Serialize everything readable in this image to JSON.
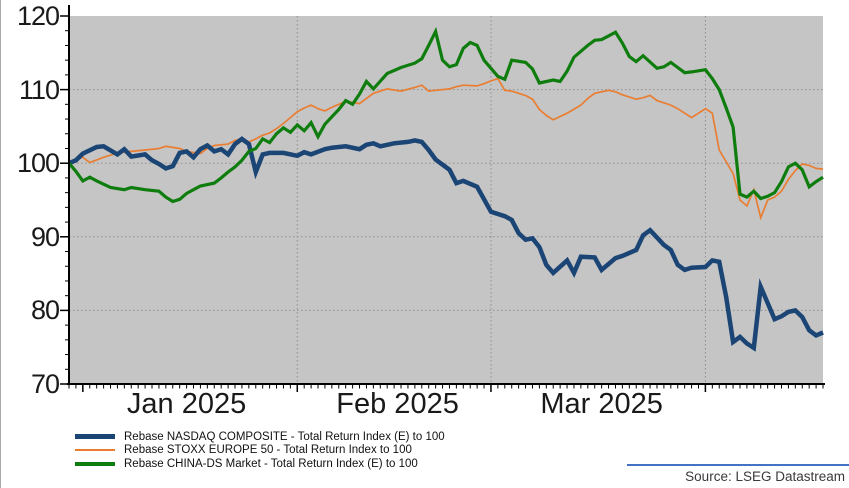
{
  "chart_data": {
    "type": "line",
    "title": "",
    "xlabel": "",
    "ylabel": "",
    "plot_bg": "#C5C5C5",
    "gridline_color": "#8F8F8F",
    "axis_color": "#000000",
    "x_range_days": 109,
    "x_month_gridline_days": [
      33,
      61,
      92
    ],
    "x_month_tick_days": [
      2,
      33,
      61,
      92
    ],
    "x_month_labels": [
      {
        "label": "Jan 2025",
        "day": 17
      },
      {
        "label": "Feb 2025",
        "day": 47.5
      },
      {
        "label": "Mar 2025",
        "day": 77
      }
    ],
    "y_axis": {
      "min": 70,
      "max": 120,
      "major_ticks": [
        120,
        110,
        100,
        90,
        80,
        70
      ],
      "minor_tick_step": 2,
      "gridline_values": [
        110,
        100,
        90,
        80
      ]
    },
    "legend_position": "bottom-left",
    "series": [
      {
        "name": "Rebase NASDAQ COMPOSITE - Total Return Index (E) to 100",
        "color": "#1B4575",
        "line_width": 4.5,
        "legend_swatch_height": 5,
        "points": [
          [
            0,
            100
          ],
          [
            1,
            100.4
          ],
          [
            2,
            101.3
          ],
          [
            4,
            102.2
          ],
          [
            5,
            102.3
          ],
          [
            7,
            101.2
          ],
          [
            8,
            101.9
          ],
          [
            9,
            100.9
          ],
          [
            11,
            101.2
          ],
          [
            12,
            100.4
          ],
          [
            13,
            99.9
          ],
          [
            14,
            99.3
          ],
          [
            15,
            99.6
          ],
          [
            16,
            101.4
          ],
          [
            17,
            101.6
          ],
          [
            18,
            100.8
          ],
          [
            19,
            101.9
          ],
          [
            20,
            102.4
          ],
          [
            21,
            101.6
          ],
          [
            22,
            101.9
          ],
          [
            23,
            101.2
          ],
          [
            24,
            102.6
          ],
          [
            25,
            103.3
          ],
          [
            26,
            102.6
          ],
          [
            27,
            98.8
          ],
          [
            28,
            101.2
          ],
          [
            29,
            101.4
          ],
          [
            31,
            101.4
          ],
          [
            33,
            101.0
          ],
          [
            34,
            101.5
          ],
          [
            35,
            101.2
          ],
          [
            37,
            101.9
          ],
          [
            38,
            102.1
          ],
          [
            40,
            102.3
          ],
          [
            42,
            101.9
          ],
          [
            43,
            102.5
          ],
          [
            44,
            102.7
          ],
          [
            45,
            102.3
          ],
          [
            47,
            102.7
          ],
          [
            49,
            102.9
          ],
          [
            50,
            103.1
          ],
          [
            51,
            102.9
          ],
          [
            52,
            101.8
          ],
          [
            53,
            100.5
          ],
          [
            55,
            99.1
          ],
          [
            56,
            97.3
          ],
          [
            57,
            97.6
          ],
          [
            59,
            96.8
          ],
          [
            61,
            93.4
          ],
          [
            63,
            92.8
          ],
          [
            64,
            92.3
          ],
          [
            65,
            90.5
          ],
          [
            66,
            89.6
          ],
          [
            67,
            89.8
          ],
          [
            68,
            88.6
          ],
          [
            69,
            86.2
          ],
          [
            70,
            85.1
          ],
          [
            72,
            86.8
          ],
          [
            73,
            85.1
          ],
          [
            74,
            87.3
          ],
          [
            76,
            87.2
          ],
          [
            77,
            85.5
          ],
          [
            79,
            87.1
          ],
          [
            80,
            87.4
          ],
          [
            82,
            88.2
          ],
          [
            83,
            90.2
          ],
          [
            84,
            90.9
          ],
          [
            86,
            88.9
          ],
          [
            87,
            88.2
          ],
          [
            88,
            86.2
          ],
          [
            89,
            85.5
          ],
          [
            90,
            85.8
          ],
          [
            92,
            85.9
          ],
          [
            93,
            86.8
          ],
          [
            94,
            86.6
          ],
          [
            95,
            81.8
          ],
          [
            96,
            75.7
          ],
          [
            97,
            76.4
          ],
          [
            98,
            75.5
          ],
          [
            99,
            74.9
          ],
          [
            100,
            83.2
          ],
          [
            102,
            78.8
          ],
          [
            103,
            79.2
          ],
          [
            104,
            79.8
          ],
          [
            105,
            80.0
          ],
          [
            106,
            79.1
          ],
          [
            107,
            77.3
          ],
          [
            108,
            76.6
          ],
          [
            109,
            77.0
          ]
        ]
      },
      {
        "name": "Rebase STOXX EUROPE 50 - Total Return Index to 100",
        "color": "#E97E32",
        "line_width": 1.7,
        "legend_swatch_height": 2,
        "points": [
          [
            0,
            100
          ],
          [
            1,
            100.6
          ],
          [
            2,
            100.8
          ],
          [
            3,
            100.1
          ],
          [
            5,
            100.8
          ],
          [
            7,
            101.4
          ],
          [
            9,
            101.6
          ],
          [
            11,
            101.8
          ],
          [
            13,
            102.0
          ],
          [
            14,
            102.3
          ],
          [
            16,
            102.0
          ],
          [
            17,
            101.6
          ],
          [
            19,
            101.3
          ],
          [
            20,
            102.0
          ],
          [
            21,
            102.4
          ],
          [
            23,
            102.6
          ],
          [
            24,
            103.1
          ],
          [
            25,
            103.3
          ],
          [
            26,
            102.9
          ],
          [
            27,
            103.3
          ],
          [
            28,
            103.8
          ],
          [
            29,
            104.1
          ],
          [
            30,
            104.7
          ],
          [
            31,
            105.4
          ],
          [
            32,
            106.2
          ],
          [
            33,
            107.0
          ],
          [
            34,
            107.5
          ],
          [
            35,
            107.9
          ],
          [
            36,
            107.4
          ],
          [
            37,
            107.1
          ],
          [
            38,
            107.6
          ],
          [
            40,
            108.4
          ],
          [
            42,
            108.1
          ],
          [
            44,
            109.5
          ],
          [
            46,
            110.1
          ],
          [
            48,
            109.8
          ],
          [
            50,
            110.3
          ],
          [
            51,
            110.6
          ],
          [
            52,
            109.8
          ],
          [
            53,
            109.9
          ],
          [
            55,
            110.1
          ],
          [
            56,
            110.4
          ],
          [
            57,
            110.6
          ],
          [
            59,
            110.5
          ],
          [
            60,
            110.8
          ],
          [
            61,
            111.2
          ],
          [
            62,
            111.5
          ],
          [
            63,
            109.9
          ],
          [
            64,
            109.8
          ],
          [
            65,
            109.5
          ],
          [
            66,
            109.2
          ],
          [
            67,
            108.7
          ],
          [
            68,
            107.3
          ],
          [
            69,
            106.5
          ],
          [
            70,
            105.9
          ],
          [
            72,
            106.8
          ],
          [
            74,
            107.9
          ],
          [
            75,
            108.8
          ],
          [
            76,
            109.5
          ],
          [
            78,
            109.9
          ],
          [
            79,
            109.7
          ],
          [
            80,
            109.3
          ],
          [
            82,
            108.7
          ],
          [
            83,
            108.9
          ],
          [
            84,
            109.2
          ],
          [
            85,
            108.5
          ],
          [
            87,
            107.9
          ],
          [
            88,
            107.4
          ],
          [
            90,
            106.2
          ],
          [
            91,
            106.8
          ],
          [
            92,
            107.4
          ],
          [
            93,
            106.8
          ],
          [
            94,
            101.8
          ],
          [
            96,
            98.6
          ],
          [
            97,
            95.0
          ],
          [
            98,
            94.2
          ],
          [
            99,
            96.4
          ],
          [
            100,
            92.6
          ],
          [
            101,
            95.0
          ],
          [
            102,
            95.4
          ],
          [
            103,
            96.2
          ],
          [
            104,
            97.8
          ],
          [
            105,
            99.0
          ],
          [
            106,
            99.9
          ],
          [
            107,
            99.7
          ],
          [
            108,
            99.3
          ],
          [
            109,
            99.2
          ]
        ]
      },
      {
        "name": "Rebase CHINA-DS Market - Total Return Index (E) to 100",
        "color": "#0E7D0E",
        "line_width": 3.2,
        "legend_swatch_height": 4,
        "points": [
          [
            0,
            100
          ],
          [
            1,
            98.9
          ],
          [
            2,
            97.6
          ],
          [
            3,
            98.1
          ],
          [
            4,
            97.6
          ],
          [
            6,
            96.7
          ],
          [
            8,
            96.4
          ],
          [
            9,
            96.7
          ],
          [
            11,
            96.4
          ],
          [
            13,
            96.2
          ],
          [
            14,
            95.4
          ],
          [
            15,
            94.8
          ],
          [
            16,
            95.1
          ],
          [
            17,
            95.9
          ],
          [
            18,
            96.4
          ],
          [
            19,
            96.9
          ],
          [
            21,
            97.3
          ],
          [
            22,
            98.0
          ],
          [
            23,
            98.8
          ],
          [
            24,
            99.5
          ],
          [
            25,
            100.4
          ],
          [
            26,
            101.6
          ],
          [
            27,
            102.0
          ],
          [
            28,
            103.3
          ],
          [
            29,
            102.8
          ],
          [
            30,
            104.0
          ],
          [
            31,
            104.8
          ],
          [
            32,
            104.2
          ],
          [
            33,
            105.2
          ],
          [
            34,
            104.4
          ],
          [
            35,
            105.5
          ],
          [
            36,
            103.6
          ],
          [
            37,
            105.3
          ],
          [
            39,
            107.3
          ],
          [
            40,
            108.5
          ],
          [
            41,
            108.0
          ],
          [
            42,
            109.4
          ],
          [
            43,
            111.1
          ],
          [
            44,
            110.1
          ],
          [
            46,
            112.2
          ],
          [
            47,
            112.6
          ],
          [
            48,
            113.0
          ],
          [
            50,
            113.6
          ],
          [
            51,
            114.2
          ],
          [
            52,
            116.0
          ],
          [
            53,
            117.9
          ],
          [
            54,
            114.0
          ],
          [
            55,
            113.1
          ],
          [
            56,
            113.4
          ],
          [
            57,
            115.6
          ],
          [
            58,
            116.4
          ],
          [
            59,
            116.0
          ],
          [
            60,
            114.0
          ],
          [
            62,
            111.8
          ],
          [
            63,
            111.4
          ],
          [
            64,
            114.0
          ],
          [
            66,
            113.7
          ],
          [
            67,
            112.8
          ],
          [
            68,
            110.9
          ],
          [
            70,
            111.3
          ],
          [
            71,
            111.1
          ],
          [
            72,
            112.5
          ],
          [
            73,
            114.4
          ],
          [
            75,
            116.0
          ],
          [
            76,
            116.7
          ],
          [
            77,
            116.8
          ],
          [
            78,
            117.3
          ],
          [
            79,
            117.8
          ],
          [
            80,
            116.3
          ],
          [
            81,
            114.5
          ],
          [
            82,
            113.8
          ],
          [
            83,
            114.6
          ],
          [
            85,
            112.9
          ],
          [
            86,
            113.1
          ],
          [
            87,
            113.7
          ],
          [
            89,
            112.3
          ],
          [
            90,
            112.4
          ],
          [
            92,
            112.7
          ],
          [
            93,
            111.5
          ],
          [
            94,
            110.0
          ],
          [
            95,
            107.5
          ],
          [
            96,
            104.9
          ],
          [
            97,
            95.8
          ],
          [
            98,
            95.4
          ],
          [
            99,
            96.2
          ],
          [
            100,
            95.2
          ],
          [
            101,
            95.5
          ],
          [
            102,
            96.0
          ],
          [
            103,
            97.5
          ],
          [
            104,
            99.5
          ],
          [
            105,
            100.0
          ],
          [
            106,
            99.1
          ],
          [
            107,
            96.8
          ],
          [
            108,
            97.5
          ],
          [
            109,
            98.1
          ]
        ]
      }
    ],
    "source_note": "Source: LSEG Datastream",
    "source_rule_color": "#4472C4"
  }
}
